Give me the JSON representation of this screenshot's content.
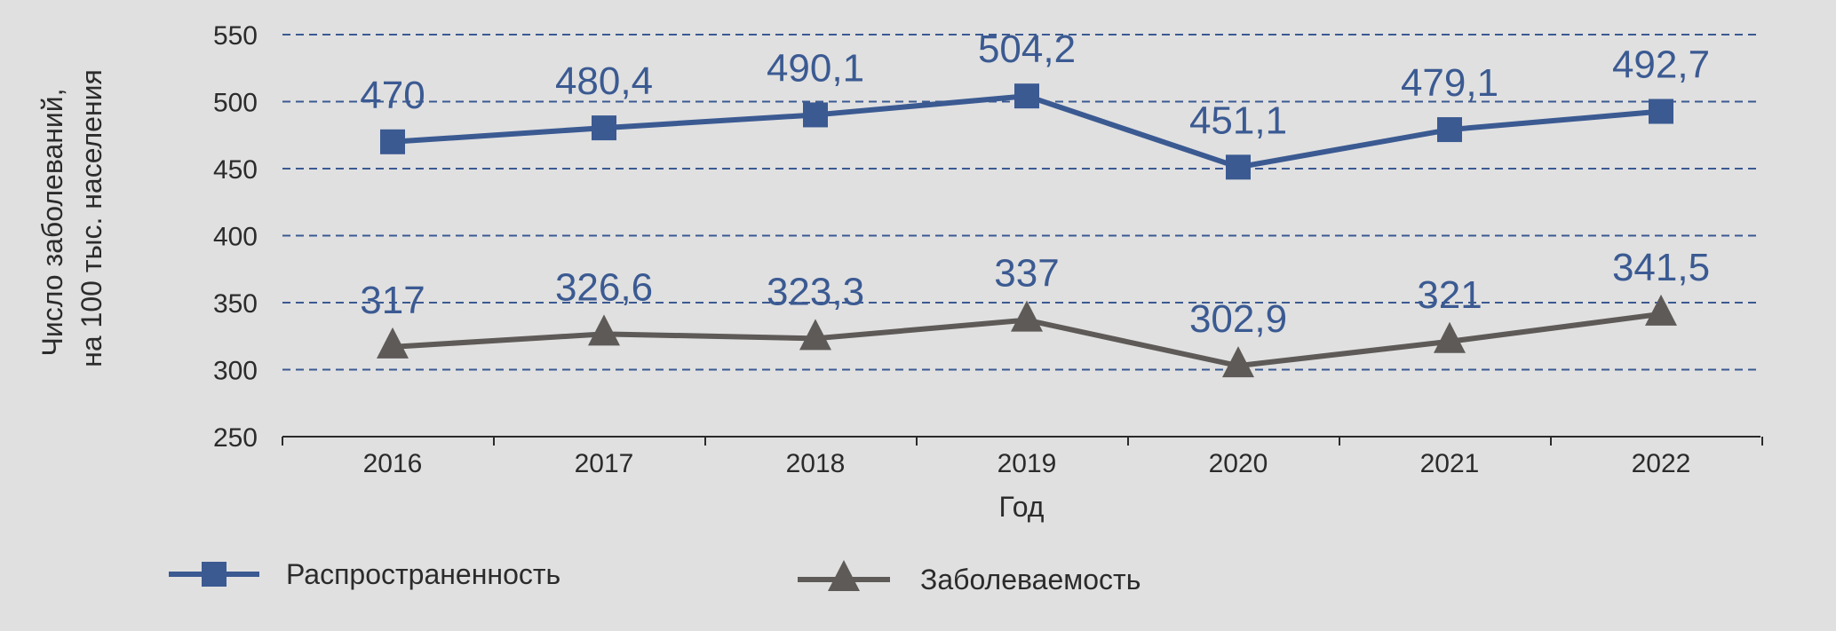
{
  "chart_data": {
    "type": "line",
    "categories": [
      "2016",
      "2017",
      "2018",
      "2019",
      "2020",
      "2021",
      "2022"
    ],
    "series": [
      {
        "name": "Распространенность",
        "values": [
          470,
          480.4,
          490.1,
          504.2,
          451.1,
          479.1,
          492.7
        ],
        "labels": [
          "470",
          "480,4",
          "490,1",
          "504,2",
          "451,1",
          "479,1",
          "492,7"
        ],
        "color": "#3b5a92",
        "marker": "square"
      },
      {
        "name": "Заболеваемость",
        "values": [
          317,
          326.6,
          323.3,
          337,
          302.9,
          321,
          341.5
        ],
        "labels": [
          "317",
          "326,6",
          "323,3",
          "337",
          "302,9",
          "321",
          "341,5"
        ],
        "color": "#5e5a58",
        "marker": "triangle"
      }
    ],
    "xlabel": "Год",
    "ylabel_lines": [
      "Число заболеваний,",
      "на 100 тыс. населения"
    ],
    "ylim": [
      250,
      550
    ],
    "yticks": [
      250,
      300,
      350,
      400,
      450,
      500,
      550
    ],
    "grid": "horizontal dashed",
    "legend_position": "bottom",
    "label_color": "#3b5a92"
  }
}
